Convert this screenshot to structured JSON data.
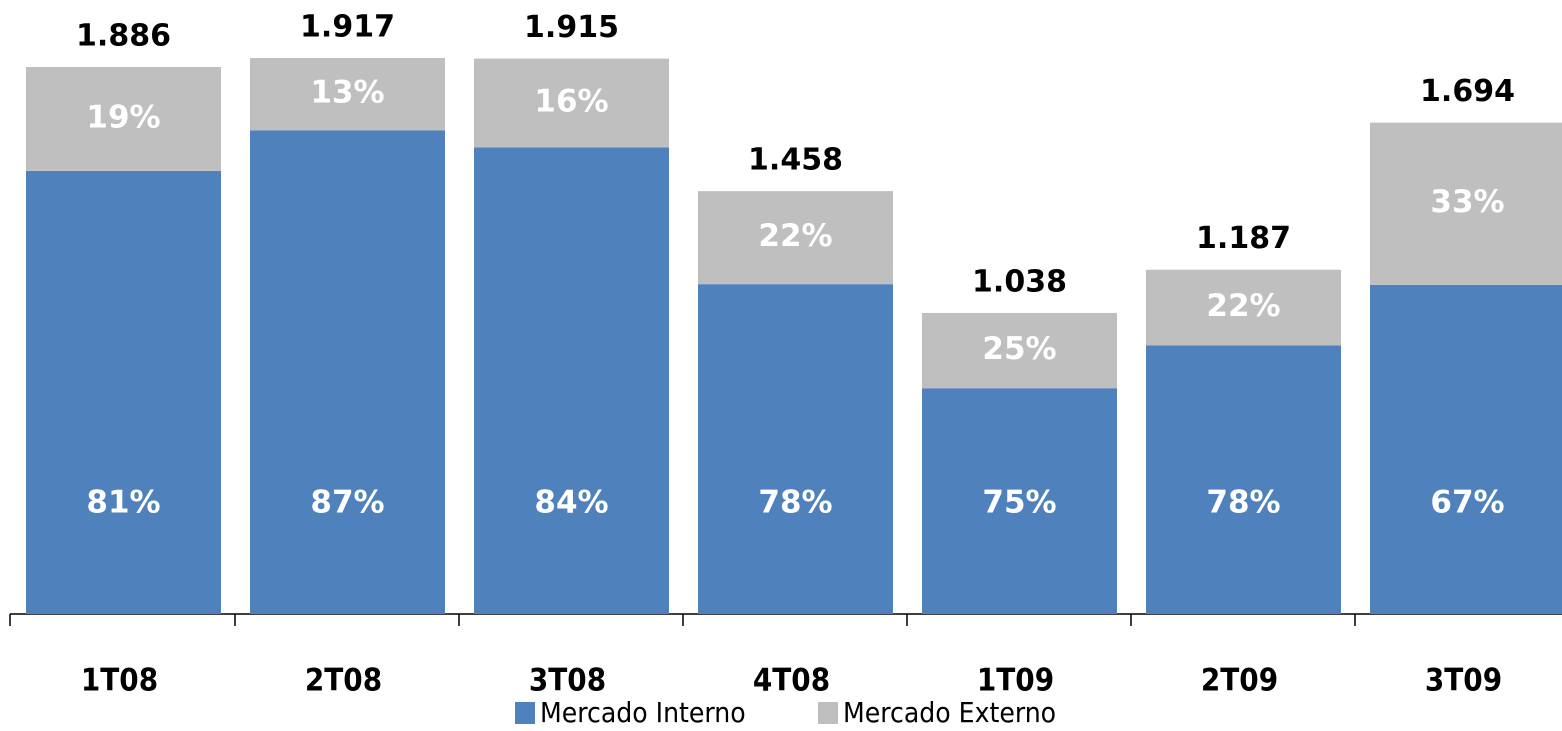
{
  "chart_data": {
    "type": "stacked_bar",
    "categories": [
      "1T08",
      "2T08",
      "3T08",
      "4T08",
      "1T09",
      "2T09",
      "3T09"
    ],
    "values": [
      1886,
      1917,
      1915,
      1458,
      1038,
      1187,
      1694
    ],
    "value_labels": [
      "1.886",
      "1.917",
      "1.915",
      "1.458",
      "1.038",
      "1.187",
      "1.694"
    ],
    "series": [
      {
        "name": "Mercado Interno",
        "color": "#4f81bd",
        "values": [
          81,
          87,
          84,
          78,
          75,
          78,
          67
        ],
        "value_labels": [
          "81%",
          "87%",
          "84%",
          "78%",
          "75%",
          "78%",
          "67%"
        ]
      },
      {
        "name": "Mercado Externo",
        "color": "#bfbfbf",
        "values": [
          19,
          13,
          16,
          22,
          25,
          22,
          33
        ],
        "value_labels": [
          "19%",
          "13%",
          "16%",
          "22%",
          "25%",
          "22%",
          "33%"
        ]
      }
    ]
  }
}
